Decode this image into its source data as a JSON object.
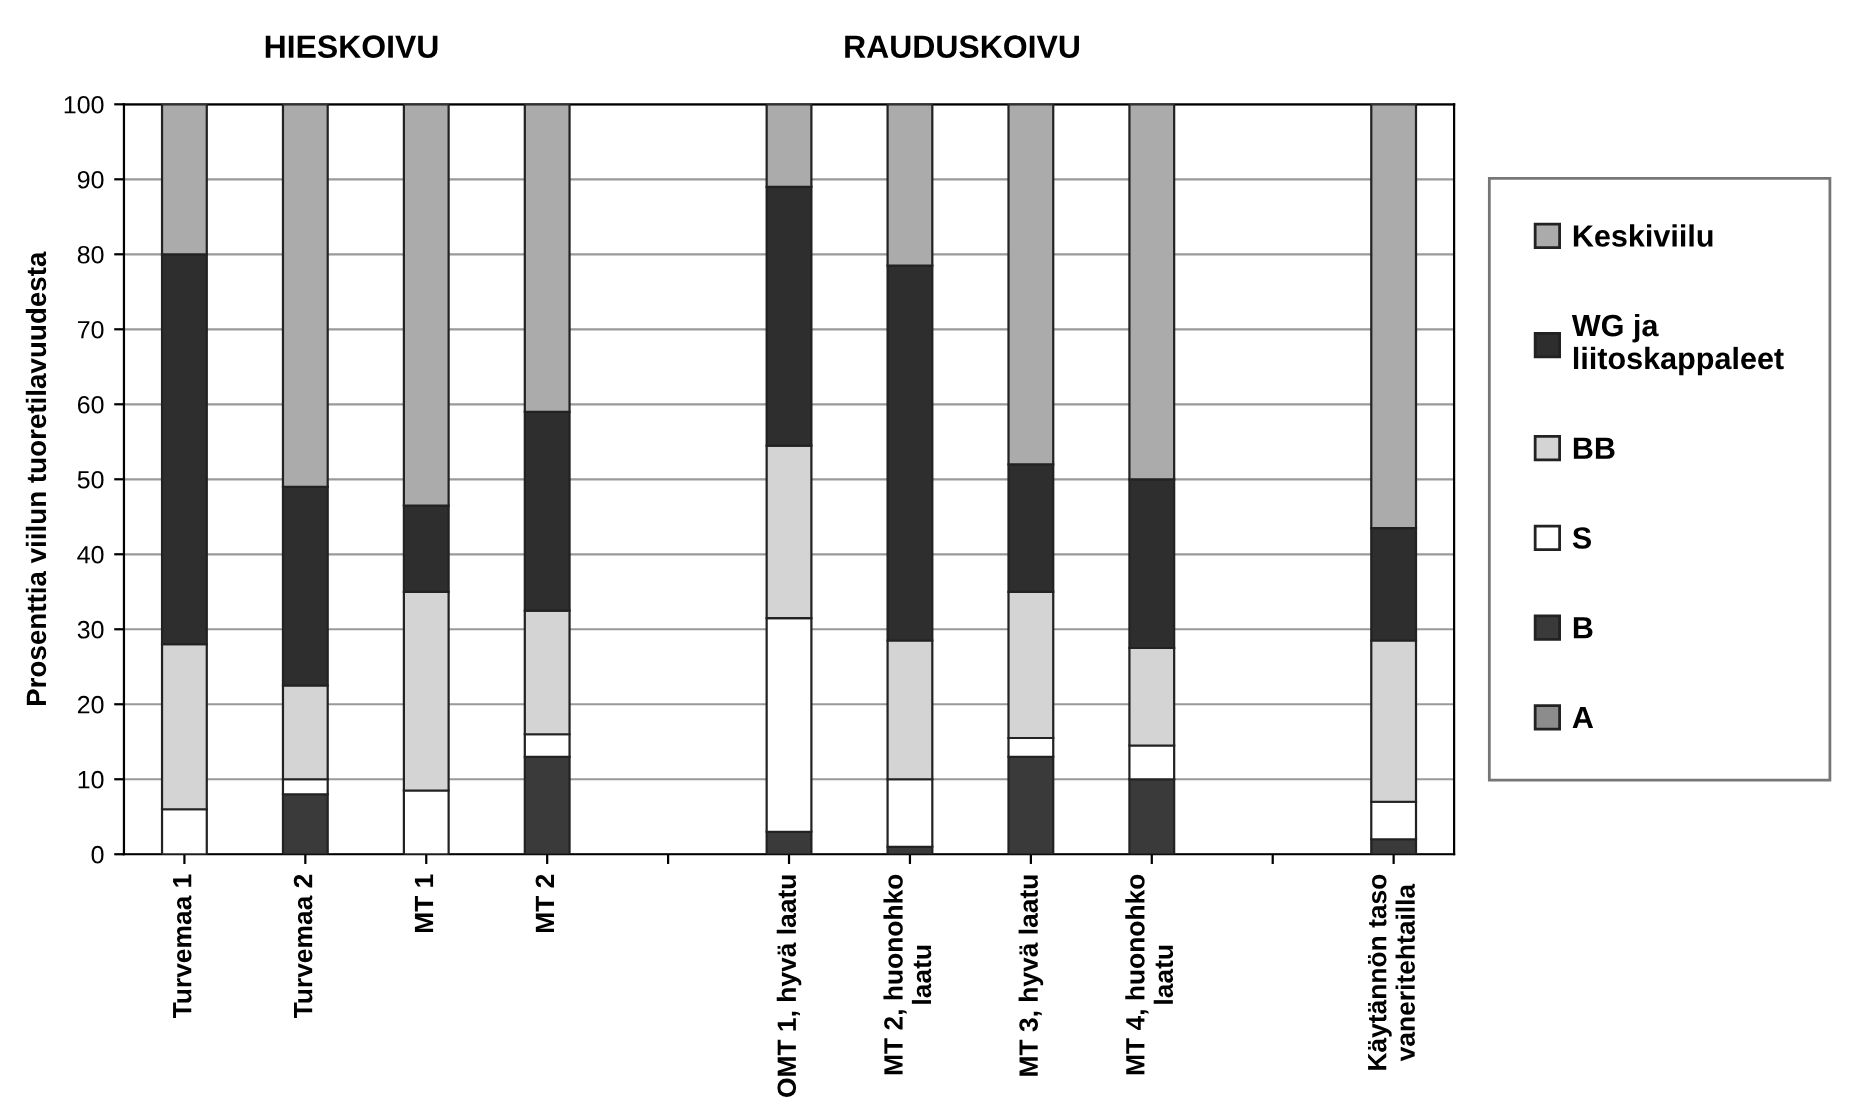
{
  "chart_data": {
    "type": "bar",
    "stacked": true,
    "ylabel": "Prosenttia viilun tuoretilavuudesta",
    "categories": [
      "Turvemaa 1",
      "Turvemaa 2",
      "MT 1",
      "MT 2",
      null,
      "OMT 1, hyvä laatu",
      "MT 2, huonohko\nlaatu",
      "MT 3, hyvä laatu",
      "MT 4, huonohko\nlaatu",
      null,
      "Käytännön taso\nvaneritehtailla"
    ],
    "series": [
      {
        "name": "A",
        "color": "#8c8c8c",
        "values": [
          0,
          0,
          0,
          0,
          null,
          0,
          0,
          0,
          0,
          null,
          0
        ]
      },
      {
        "name": "B",
        "color": "#3a3a3a",
        "values": [
          0,
          8,
          0,
          13,
          null,
          3,
          1,
          13,
          10,
          null,
          2
        ]
      },
      {
        "name": "S",
        "color": "#ffffff",
        "values": [
          6,
          2,
          8.5,
          3,
          null,
          28.5,
          9,
          2.5,
          4.5,
          null,
          5
        ]
      },
      {
        "name": "BB",
        "color": "#d4d4d4",
        "values": [
          22,
          12.5,
          26.5,
          16.5,
          null,
          23,
          18.5,
          19.5,
          13,
          null,
          21.5
        ]
      },
      {
        "name": "WG ja\nliitoskappaleet",
        "color": "#2e2e2e",
        "values": [
          52,
          26.5,
          11.5,
          26.5,
          null,
          34.5,
          50,
          17,
          22.5,
          null,
          15
        ]
      },
      {
        "name": "Keskiviilu",
        "color": "#ababab",
        "values": [
          20,
          51,
          53.5,
          41,
          null,
          11,
          21.5,
          48,
          50,
          null,
          56.5
        ]
      }
    ],
    "annotations": [
      "HIESKOIVU",
      "RAUDUSKOIVU"
    ],
    "ylim": [
      0,
      100
    ],
    "yticks": [
      0,
      10,
      20,
      30,
      40,
      50,
      60,
      70,
      80,
      90,
      100
    ],
    "grid": "y",
    "legend": "right"
  }
}
